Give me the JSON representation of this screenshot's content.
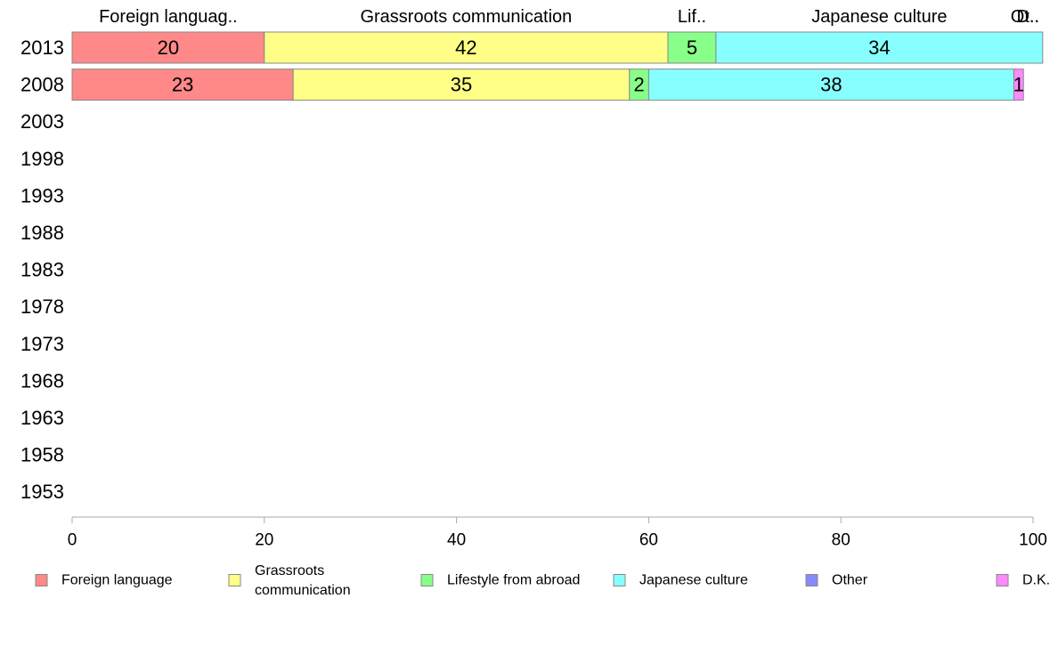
{
  "chart_data": {
    "type": "bar",
    "orientation": "horizontal",
    "stacked": true,
    "categories": [
      "2013",
      "2008",
      "2003",
      "1998",
      "1993",
      "1988",
      "1983",
      "1978",
      "1973",
      "1968",
      "1963",
      "1958",
      "1953"
    ],
    "series": [
      {
        "name": "Foreign language",
        "short_label": "Foreign languag..",
        "color": "#ff8888",
        "values": [
          20,
          23,
          null,
          null,
          null,
          null,
          null,
          null,
          null,
          null,
          null,
          null,
          null
        ]
      },
      {
        "name": "Grassroots communication",
        "short_label": "Grassroots communication",
        "color": "#ffff88",
        "values": [
          42,
          35,
          null,
          null,
          null,
          null,
          null,
          null,
          null,
          null,
          null,
          null,
          null
        ]
      },
      {
        "name": "Lifestyle from abroad",
        "short_label": "Lif..",
        "color": "#88ff88",
        "values": [
          5,
          2,
          null,
          null,
          null,
          null,
          null,
          null,
          null,
          null,
          null,
          null,
          null
        ]
      },
      {
        "name": "Japanese culture",
        "short_label": "Japanese culture",
        "color": "#88ffff",
        "values": [
          34,
          38,
          null,
          null,
          null,
          null,
          null,
          null,
          null,
          null,
          null,
          null,
          null
        ]
      },
      {
        "name": "Other",
        "short_label": "Ot..",
        "color": "#8888ff",
        "values": [
          0,
          0,
          null,
          null,
          null,
          null,
          null,
          null,
          null,
          null,
          null,
          null,
          null
        ]
      },
      {
        "name": "D.K.",
        "short_label": "D..",
        "color": "#ff88ff",
        "values": [
          0,
          1,
          null,
          null,
          null,
          null,
          null,
          null,
          null,
          null,
          null,
          null,
          null
        ]
      }
    ],
    "xlim": [
      0,
      100
    ],
    "xticks": [
      0,
      20,
      40,
      60,
      80,
      100
    ],
    "legend_position": "bottom",
    "grid": false
  }
}
